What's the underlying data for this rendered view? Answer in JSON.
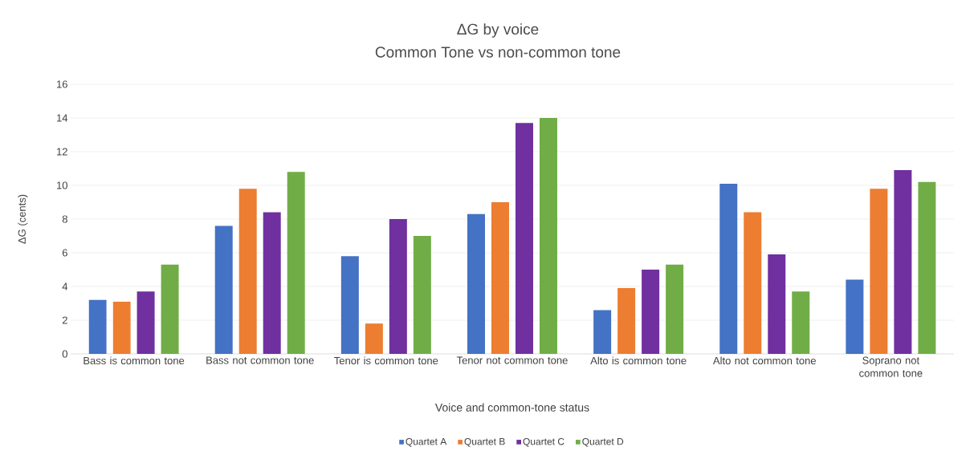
{
  "chart_data": {
    "type": "bar",
    "title": "ΔG by voice",
    "subtitle": "Common Tone vs non-common tone",
    "xlabel": "Voice and common-tone status",
    "ylabel": "ΔG (cents)",
    "categories": [
      "Bass is common tone",
      "Bass not common tone",
      "Tenor is common tone",
      "Tenor not common tone",
      "Alto is common tone",
      "Alto not common tone",
      "Soprano not common tone"
    ],
    "series": [
      {
        "name": "Quartet A",
        "color": "#4472c4",
        "values": [
          3.2,
          7.6,
          5.8,
          8.3,
          2.6,
          10.1,
          4.4
        ]
      },
      {
        "name": "Quartet B",
        "color": "#ed7d31",
        "values": [
          3.1,
          9.8,
          1.8,
          9.0,
          3.9,
          8.4,
          9.8
        ]
      },
      {
        "name": "Quartet C",
        "color": "#7030a0",
        "values": [
          3.7,
          8.4,
          8.0,
          13.7,
          5.0,
          5.9,
          10.9
        ]
      },
      {
        "name": "Quartet D",
        "color": "#70ad47",
        "values": [
          5.3,
          10.8,
          7.0,
          14.0,
          5.3,
          3.7,
          10.2
        ]
      }
    ],
    "ylim": [
      0,
      16
    ],
    "yticks": [
      0,
      2,
      4,
      6,
      8,
      10,
      12,
      14,
      16
    ],
    "grid": "y",
    "legend": "bottom"
  }
}
